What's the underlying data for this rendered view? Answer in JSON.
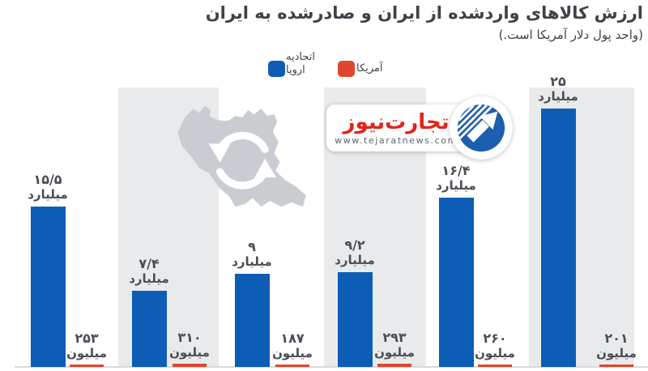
{
  "chart_data": {
    "type": "bar",
    "title": "ارزش کالاهای واردشده از ایران و صادرشده به ایران",
    "subtitle": "(واحد پول دلار آمریکا است.)",
    "legend_position": "top-center",
    "grid": false,
    "x_tick_labels": [],
    "series": [
      {
        "name": "اتحادیه اروپا",
        "color": "#0d5db6",
        "unit_label": "میلیارد",
        "values_usd_billion": [
          15.5,
          7.4,
          9,
          9.2,
          16.4,
          25
        ],
        "value_labels": [
          {
            "num": "۱۵/۵",
            "unit": "میلیارد"
          },
          {
            "num": "۷/۴",
            "unit": "میلیارد"
          },
          {
            "num": "۹",
            "unit": "میلیارد"
          },
          {
            "num": "۹/۲",
            "unit": "میلیارد"
          },
          {
            "num": "۱۶/۴",
            "unit": "میلیارد"
          },
          {
            "num": "۲۵",
            "unit": "میلیارد"
          }
        ]
      },
      {
        "name": "آمریکا",
        "color": "#e0462f",
        "unit_label": "میلیون",
        "values_usd_million": [
          253,
          310,
          187,
          293,
          260,
          201
        ],
        "value_labels": [
          {
            "num": "۲۵۳",
            "unit": "میلیون"
          },
          {
            "num": "۳۱۰",
            "unit": "میلیون"
          },
          {
            "num": "۱۸۷",
            "unit": "میلیون"
          },
          {
            "num": "۲۹۳",
            "unit": "میلیون"
          },
          {
            "num": "۲۶۰",
            "unit": "میلیون"
          },
          {
            "num": "۲۰۱",
            "unit": "میلیون"
          }
        ]
      }
    ]
  },
  "watermark": {
    "brand": "تجارت‌نیوز",
    "url": "www.tejaratnews.com"
  },
  "colors": {
    "eu_blue": "#0d5db6",
    "us_red": "#e0462f",
    "band": "#e9eaec",
    "map": "#c9cdd2",
    "title_text": "#3d4249",
    "label_text": "#4a4e54",
    "brand_red": "#e2251c",
    "baseline": "#d9dadc",
    "emblem_blue": "#1c5fae"
  }
}
